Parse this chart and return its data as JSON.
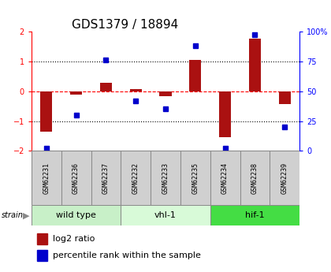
{
  "title": "GDS1379 / 18894",
  "samples": [
    "GSM62231",
    "GSM62236",
    "GSM62237",
    "GSM62232",
    "GSM62233",
    "GSM62235",
    "GSM62234",
    "GSM62238",
    "GSM62239"
  ],
  "log2_ratio": [
    -1.35,
    -0.12,
    0.28,
    0.07,
    -0.18,
    1.05,
    -1.55,
    1.75,
    -0.42
  ],
  "percentile_rank": [
    2,
    30,
    76,
    42,
    35,
    88,
    2,
    97,
    20
  ],
  "groups": [
    {
      "label": "wild type",
      "start": 0,
      "end": 3,
      "color": "#c8f0c8"
    },
    {
      "label": "vhl-1",
      "start": 3,
      "end": 6,
      "color": "#d8fad8"
    },
    {
      "label": "hif-1",
      "start": 6,
      "end": 9,
      "color": "#44dd44"
    }
  ],
  "bar_color": "#aa1111",
  "dot_color": "#0000cc",
  "ylim_left": [
    -2,
    2
  ],
  "ylim_right": [
    0,
    100
  ],
  "yticks_left": [
    -2,
    -1,
    0,
    1,
    2
  ],
  "yticks_right": [
    0,
    25,
    50,
    75,
    100
  ],
  "bg_color": "#ffffff",
  "sample_box_color": "#d0d0d0",
  "title_fontsize": 11,
  "tick_fontsize": 7,
  "sample_fontsize": 6,
  "group_fontsize": 8,
  "legend_fontsize": 8
}
